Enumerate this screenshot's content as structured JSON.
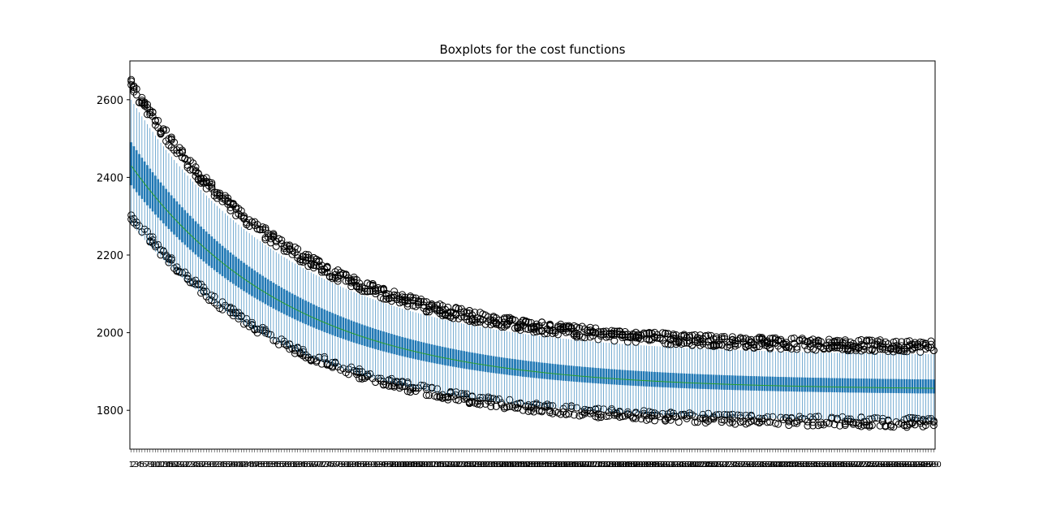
{
  "chart_data": {
    "type": "box",
    "title": "Boxplots for the cost functions",
    "xlabel": "",
    "ylabel": "",
    "ylim": [
      1700,
      2700
    ],
    "yticks": [
      1800,
      2000,
      2200,
      2400,
      2600
    ],
    "n_boxes": 300,
    "x_tick_labels": "1–300 (one per box, densely overlapping)",
    "series_trend": {
      "median": {
        "start": 2430,
        "end": 1853,
        "decay": 5.0
      },
      "q1": {
        "start": 2380,
        "end": 1840,
        "decay": 5.0
      },
      "q3": {
        "start": 2490,
        "end": 1875,
        "decay": 5.0
      },
      "whisker_low": {
        "start": 2280,
        "end": 1770,
        "decay": 5.0
      },
      "whisker_high": {
        "start": 2600,
        "end": 1940,
        "decay": 5.0
      },
      "outlier_low": {
        "start": 2290,
        "end": 1752,
        "decay": 5.0
      },
      "outlier_high": {
        "start": 2655,
        "end": 1975,
        "decay": 5.0
      }
    },
    "colors": {
      "box_fill": "#1f77b4",
      "box_stroke": "#1f77b4",
      "median": "#2ca02c",
      "outlier_edge": "#000000",
      "axes": "#000000"
    },
    "grid": false,
    "legend": "none"
  }
}
